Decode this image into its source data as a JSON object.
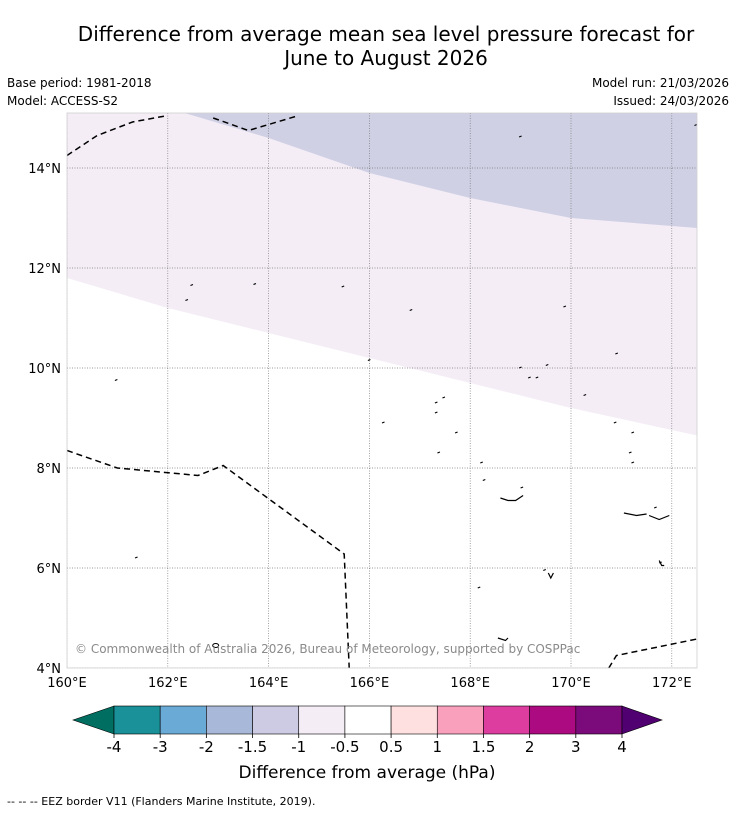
{
  "title": {
    "line1": "Difference from average mean sea level pressure forecast for",
    "line2": "June to August 2026"
  },
  "meta": {
    "base_period": "Base period: 1981-2018",
    "model": "Model: ACCESS-S2",
    "model_run": "Model run: 21/03/2026",
    "issued": "Issued: 24/03/2026"
  },
  "map": {
    "lat_ticks": [
      {
        "value": 14,
        "label": "14°N"
      },
      {
        "value": 12,
        "label": "12°N"
      },
      {
        "value": 10,
        "label": "10°N"
      },
      {
        "value": 8,
        "label": "8°N"
      },
      {
        "value": 6,
        "label": "6°N"
      },
      {
        "value": 4,
        "label": "4°N"
      }
    ],
    "lon_ticks": [
      {
        "value": 160,
        "label": "160°E"
      },
      {
        "value": 162,
        "label": "162°E"
      },
      {
        "value": 164,
        "label": "164°E"
      },
      {
        "value": 166,
        "label": "166°E"
      },
      {
        "value": 168,
        "label": "168°E"
      },
      {
        "value": 170,
        "label": "170°E"
      },
      {
        "value": 172,
        "label": "172°E"
      }
    ],
    "lon_range": [
      160,
      172.5
    ],
    "lat_range": [
      4,
      15.1
    ],
    "copyright": "© Commonwealth of Australia 2026, Bureau of Meteorology, supported by COSPPac",
    "shading": [
      {
        "class": "-1.5 to -1",
        "color": "#d0d0e5",
        "boundary": [
          [
            160,
            15.2
          ],
          [
            162,
            15.2
          ],
          [
            164,
            14.6
          ],
          [
            166,
            13.9
          ],
          [
            168,
            13.4
          ],
          [
            170,
            13.0
          ],
          [
            172.5,
            12.8
          ]
        ]
      },
      {
        "class": "-1 to -0.5",
        "color": "#f4edf6",
        "boundary": [
          [
            160,
            11.8
          ],
          [
            162,
            11.2
          ],
          [
            164,
            10.7
          ],
          [
            166,
            10.2
          ],
          [
            168,
            9.7
          ],
          [
            170,
            9.2
          ],
          [
            172.5,
            8.65
          ]
        ]
      }
    ],
    "eez_borders": [
      [
        [
          160,
          14.25
        ],
        [
          160.6,
          14.65
        ],
        [
          161.3,
          14.92
        ],
        [
          162,
          15.05
        ]
      ],
      [
        [
          162.9,
          15.0
        ],
        [
          163.6,
          14.75
        ],
        [
          164.6,
          15.05
        ]
      ],
      [
        [
          160,
          8.35
        ],
        [
          161,
          8.0
        ],
        [
          162.6,
          7.85
        ],
        [
          163.1,
          8.05
        ],
        [
          165.5,
          6.28
        ],
        [
          165.6,
          4.0
        ]
      ],
      [
        [
          170.75,
          4.0
        ],
        [
          170.9,
          4.25
        ],
        [
          172.5,
          4.58
        ]
      ]
    ]
  },
  "colorbar": {
    "title": "Difference from average (hPa)",
    "tick_labels": [
      "-4",
      "-3",
      "-2",
      "-1.5",
      "-1",
      "-0.5",
      "0.5",
      "1",
      "1.5",
      "2",
      "3",
      "4"
    ],
    "colors": [
      "#006e60",
      "#1a9098",
      "#6aaad6",
      "#a8b8d8",
      "#cccbe3",
      "#f4edf6",
      "#ffffff",
      "#fee0e0",
      "#f9a0bc",
      "#dc3d9e",
      "#ac0a80",
      "#7b0b7a",
      "#500070"
    ]
  },
  "footer": "--  --  -- EEZ border V11 (Flanders Marine Institute, 2019)."
}
